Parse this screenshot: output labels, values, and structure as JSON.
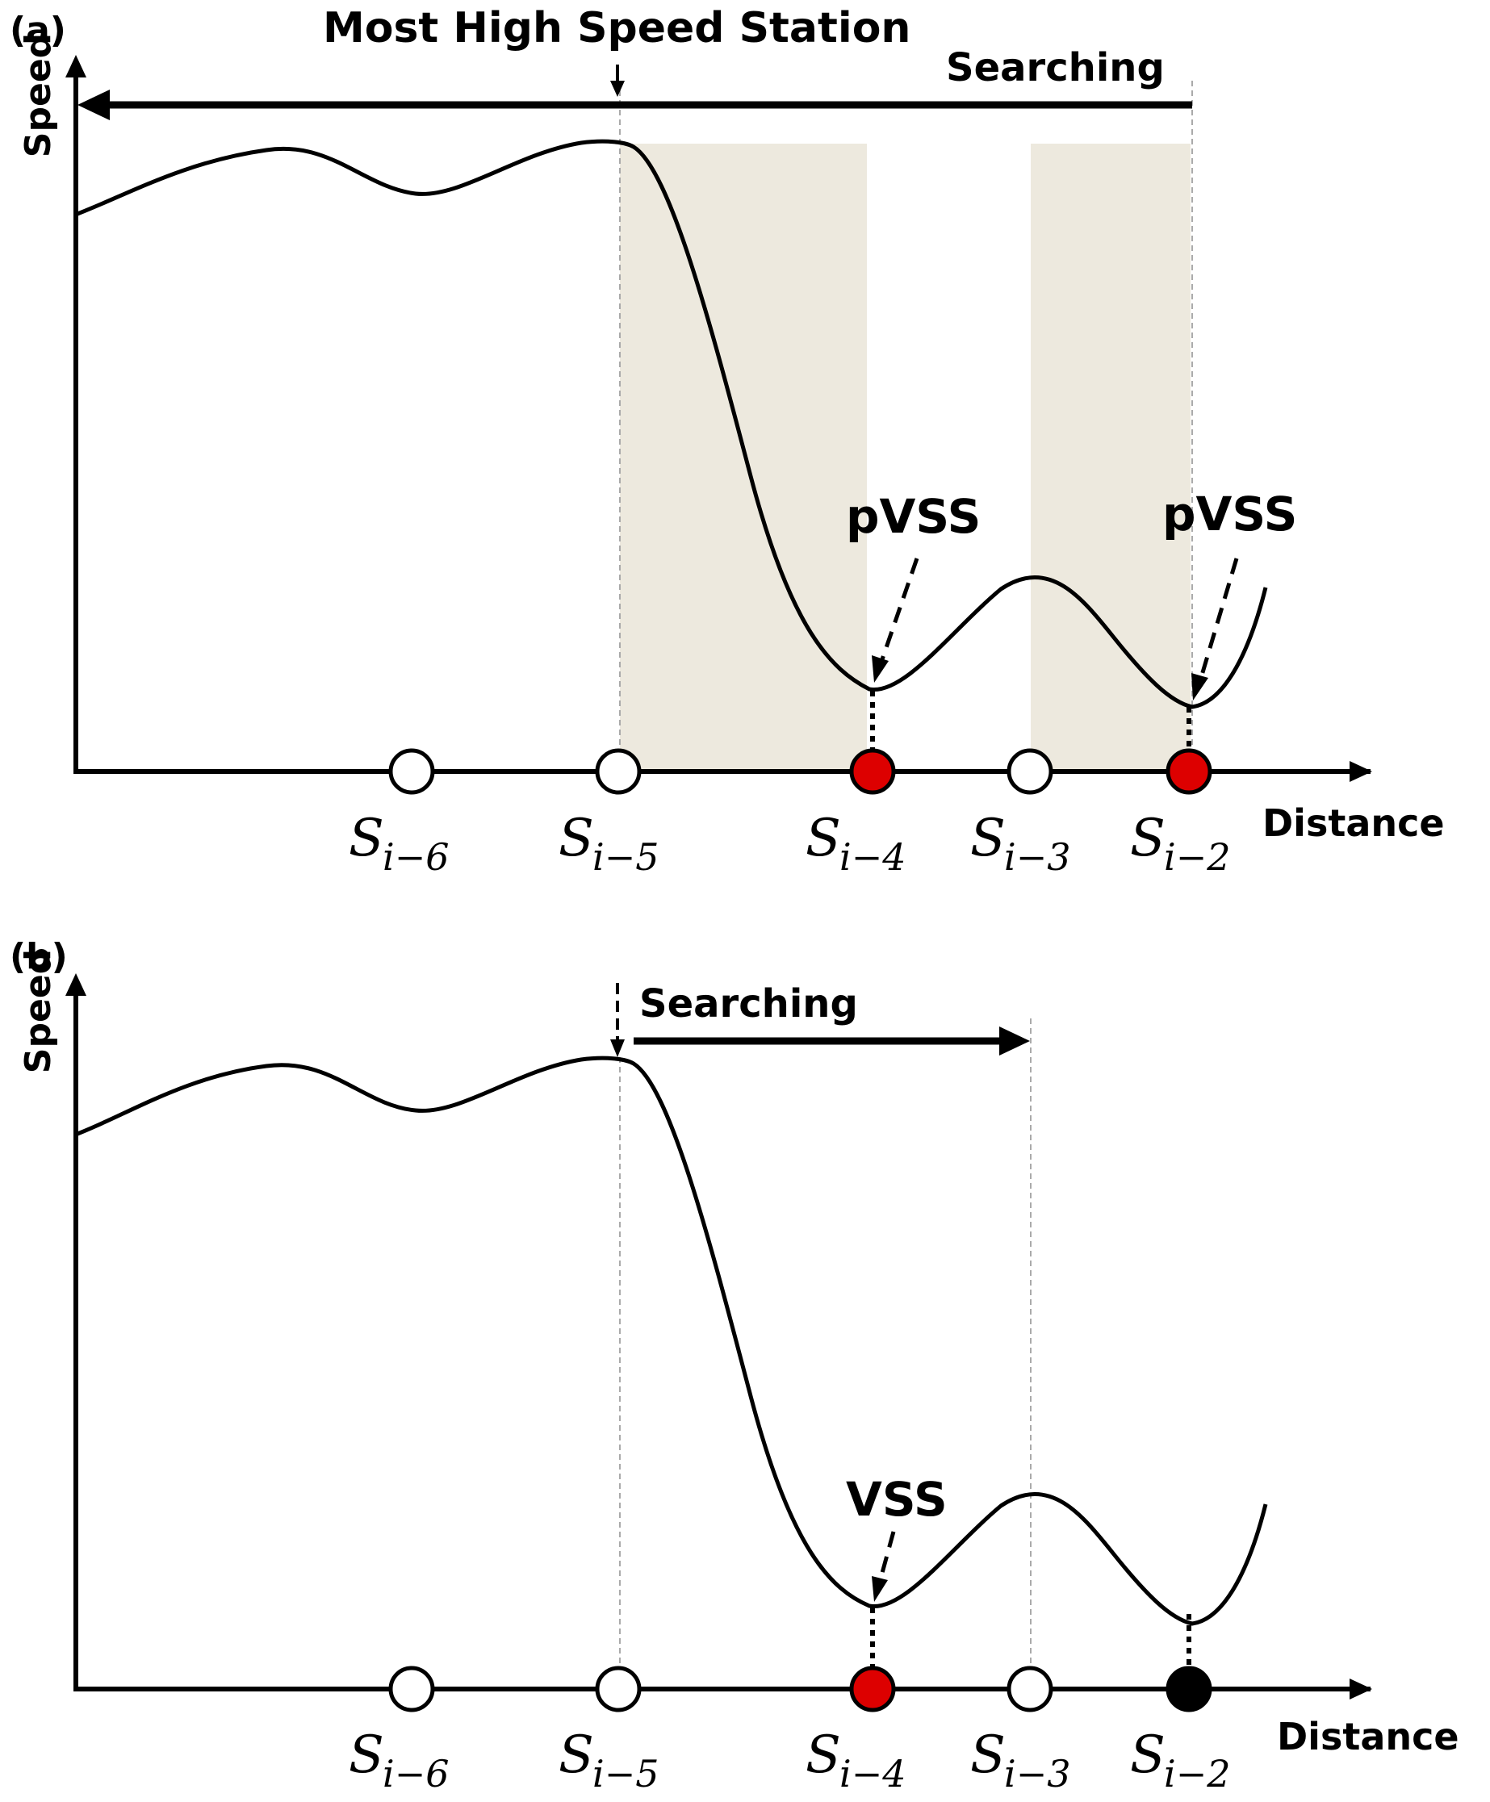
{
  "panel_a": {
    "tag": "(a)",
    "y_label": "Speed",
    "x_label": "Distance",
    "top_label": "Most High Speed Station",
    "search_label": "Searching",
    "search_direction": "leftward",
    "stations": [
      {
        "base": "S",
        "sub": "i−6",
        "state": "empty"
      },
      {
        "base": "S",
        "sub": "i−5",
        "state": "empty"
      },
      {
        "base": "S",
        "sub": "i−4",
        "state": "red"
      },
      {
        "base": "S",
        "sub": "i−3",
        "state": "empty"
      },
      {
        "base": "S",
        "sub": "i−2",
        "state": "red"
      }
    ],
    "callouts": [
      {
        "text": "pVSS",
        "station": "i−4"
      },
      {
        "text": "pVSS",
        "station": "i−2"
      }
    ]
  },
  "panel_b": {
    "tag": "(b)",
    "y_label": "Speed",
    "x_label": "Distance",
    "search_label": "Searching",
    "search_direction": "rightward",
    "stations": [
      {
        "base": "S",
        "sub": "i−6",
        "state": "empty"
      },
      {
        "base": "S",
        "sub": "i−5",
        "state": "empty"
      },
      {
        "base": "S",
        "sub": "i−4",
        "state": "red"
      },
      {
        "base": "S",
        "sub": "i−3",
        "state": "empty"
      },
      {
        "base": "S",
        "sub": "i−2",
        "state": "black"
      }
    ],
    "callouts": [
      {
        "text": "VSS",
        "station": "i−4"
      }
    ]
  },
  "colors": {
    "shade": "#ede9de",
    "red_station": "#dd0000",
    "black_station": "#000000",
    "guide_line": "#aaaaaa"
  }
}
